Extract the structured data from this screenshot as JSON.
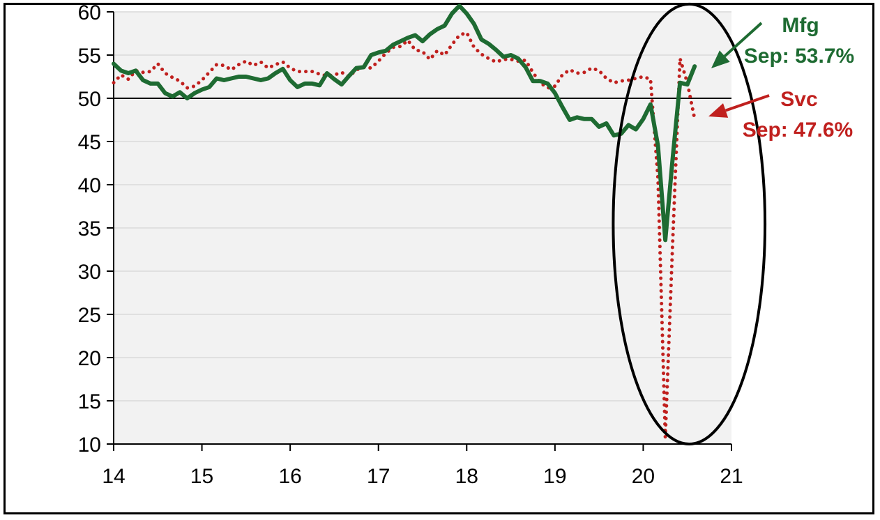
{
  "chart_data": {
    "type": "line",
    "x_ticks": [
      "14",
      "15",
      "16",
      "17",
      "18",
      "19",
      "20",
      "21"
    ],
    "y_ticks": [
      "10",
      "15",
      "20",
      "25",
      "30",
      "35",
      "40",
      "45",
      "50",
      "55",
      "60"
    ],
    "xlim": [
      14,
      21
    ],
    "ylim": [
      10,
      60
    ],
    "reference_line": 50,
    "grid": "horizontal",
    "plot_background": "#f2f2f2",
    "series": [
      {
        "name": "Mfg",
        "color": "#1e6b32",
        "style": "solid",
        "points": [
          [
            14.0,
            54.0
          ],
          [
            14.083,
            53.2
          ],
          [
            14.167,
            52.9
          ],
          [
            14.25,
            53.2
          ],
          [
            14.333,
            52.1
          ],
          [
            14.417,
            51.7
          ],
          [
            14.5,
            51.7
          ],
          [
            14.583,
            50.6
          ],
          [
            14.667,
            50.2
          ],
          [
            14.75,
            50.7
          ],
          [
            14.833,
            50.0
          ],
          [
            14.917,
            50.6
          ],
          [
            15.0,
            51.0
          ],
          [
            15.083,
            51.3
          ],
          [
            15.167,
            52.3
          ],
          [
            15.25,
            52.1
          ],
          [
            15.333,
            52.3
          ],
          [
            15.417,
            52.5
          ],
          [
            15.5,
            52.5
          ],
          [
            15.583,
            52.3
          ],
          [
            15.667,
            52.1
          ],
          [
            15.75,
            52.3
          ],
          [
            15.833,
            52.9
          ],
          [
            15.917,
            53.4
          ],
          [
            16.0,
            52.1
          ],
          [
            16.083,
            51.3
          ],
          [
            16.167,
            51.7
          ],
          [
            16.25,
            51.7
          ],
          [
            16.333,
            51.5
          ],
          [
            16.417,
            52.9
          ],
          [
            16.5,
            52.2
          ],
          [
            16.583,
            51.6
          ],
          [
            16.667,
            52.6
          ],
          [
            16.75,
            53.5
          ],
          [
            16.833,
            53.6
          ],
          [
            16.917,
            55.0
          ],
          [
            17.0,
            55.3
          ],
          [
            17.083,
            55.5
          ],
          [
            17.167,
            56.2
          ],
          [
            17.25,
            56.6
          ],
          [
            17.333,
            57.0
          ],
          [
            17.417,
            57.3
          ],
          [
            17.5,
            56.6
          ],
          [
            17.583,
            57.4
          ],
          [
            17.667,
            58.0
          ],
          [
            17.75,
            58.4
          ],
          [
            17.833,
            59.8
          ],
          [
            17.917,
            60.7
          ],
          [
            18.0,
            59.8
          ],
          [
            18.083,
            58.6
          ],
          [
            18.167,
            56.8
          ],
          [
            18.25,
            56.3
          ],
          [
            18.333,
            55.6
          ],
          [
            18.417,
            54.8
          ],
          [
            18.5,
            55.0
          ],
          [
            18.583,
            54.6
          ],
          [
            18.667,
            53.6
          ],
          [
            18.75,
            52.0
          ],
          [
            18.833,
            52.0
          ],
          [
            18.917,
            51.7
          ],
          [
            19.0,
            50.6
          ],
          [
            19.083,
            49.0
          ],
          [
            19.167,
            47.5
          ],
          [
            19.25,
            47.8
          ],
          [
            19.333,
            47.6
          ],
          [
            19.417,
            47.6
          ],
          [
            19.5,
            46.7
          ],
          [
            19.583,
            47.1
          ],
          [
            19.667,
            45.7
          ],
          [
            19.75,
            45.9
          ],
          [
            19.833,
            46.9
          ],
          [
            19.917,
            46.4
          ],
          [
            20.0,
            47.6
          ],
          [
            20.083,
            49.3
          ],
          [
            20.167,
            44.5
          ],
          [
            20.25,
            33.6
          ],
          [
            20.333,
            43.0
          ],
          [
            20.417,
            51.8
          ],
          [
            20.5,
            51.6
          ],
          [
            20.583,
            53.7
          ]
        ]
      },
      {
        "name": "Svc",
        "color": "#c0201e",
        "style": "dotted",
        "points": [
          [
            14.0,
            51.8
          ],
          [
            14.083,
            52.7
          ],
          [
            14.167,
            52.2
          ],
          [
            14.25,
            53.2
          ],
          [
            14.333,
            53.0
          ],
          [
            14.417,
            53.1
          ],
          [
            14.5,
            54.0
          ],
          [
            14.583,
            52.9
          ],
          [
            14.667,
            52.4
          ],
          [
            14.75,
            52.0
          ],
          [
            14.833,
            51.2
          ],
          [
            14.917,
            51.4
          ],
          [
            15.0,
            52.1
          ],
          [
            15.083,
            53.0
          ],
          [
            15.167,
            53.9
          ],
          [
            15.25,
            53.8
          ],
          [
            15.333,
            53.3
          ],
          [
            15.417,
            53.9
          ],
          [
            15.5,
            54.3
          ],
          [
            15.583,
            53.8
          ],
          [
            15.667,
            54.2
          ],
          [
            15.75,
            53.5
          ],
          [
            15.833,
            53.9
          ],
          [
            15.917,
            54.2
          ],
          [
            16.0,
            53.5
          ],
          [
            16.083,
            53.1
          ],
          [
            16.167,
            53.1
          ],
          [
            16.25,
            53.1
          ],
          [
            16.333,
            52.8
          ],
          [
            16.417,
            52.6
          ],
          [
            16.5,
            52.7
          ],
          [
            16.583,
            53.0
          ],
          [
            16.667,
            52.5
          ],
          [
            16.75,
            53.3
          ],
          [
            16.833,
            53.6
          ],
          [
            16.917,
            53.5
          ],
          [
            17.0,
            54.3
          ],
          [
            17.083,
            55.2
          ],
          [
            17.167,
            55.9
          ],
          [
            17.25,
            56.0
          ],
          [
            17.333,
            56.7
          ],
          [
            17.417,
            55.6
          ],
          [
            17.5,
            55.4
          ],
          [
            17.583,
            54.5
          ],
          [
            17.667,
            55.5
          ],
          [
            17.75,
            55.0
          ],
          [
            17.833,
            56.2
          ],
          [
            17.917,
            57.3
          ],
          [
            18.0,
            57.6
          ],
          [
            18.083,
            55.9
          ],
          [
            18.167,
            55.1
          ],
          [
            18.25,
            54.6
          ],
          [
            18.333,
            54.2
          ],
          [
            18.417,
            54.5
          ],
          [
            18.5,
            54.5
          ],
          [
            18.583,
            54.3
          ],
          [
            18.667,
            54.4
          ],
          [
            18.75,
            53.0
          ],
          [
            18.833,
            51.8
          ],
          [
            18.917,
            51.2
          ],
          [
            19.0,
            51.4
          ],
          [
            19.083,
            52.7
          ],
          [
            19.167,
            53.3
          ],
          [
            19.25,
            52.9
          ],
          [
            19.333,
            53.0
          ],
          [
            19.417,
            53.5
          ],
          [
            19.5,
            53.2
          ],
          [
            19.583,
            52.3
          ],
          [
            19.667,
            51.8
          ],
          [
            19.75,
            52.0
          ],
          [
            19.833,
            52.1
          ],
          [
            19.917,
            52.3
          ],
          [
            20.0,
            52.5
          ],
          [
            20.083,
            52.2
          ],
          [
            20.167,
            40.7
          ],
          [
            20.25,
            10.8
          ],
          [
            20.333,
            33.2
          ],
          [
            20.417,
            54.6
          ],
          [
            20.5,
            51.8
          ],
          [
            20.583,
            47.6
          ]
        ]
      }
    ],
    "annotations": [
      {
        "series": "Mfg",
        "label": "Mfg",
        "text": "Sep: 53.7%",
        "color": "#1e6b32"
      },
      {
        "series": "Svc",
        "label": "Svc",
        "text": "Sep: 47.6%",
        "color": "#c0201e"
      }
    ],
    "highlight": {
      "shape": "ellipse",
      "x_range": [
        19.66,
        21.38
      ],
      "y_range": [
        10.0,
        60.9
      ]
    }
  }
}
